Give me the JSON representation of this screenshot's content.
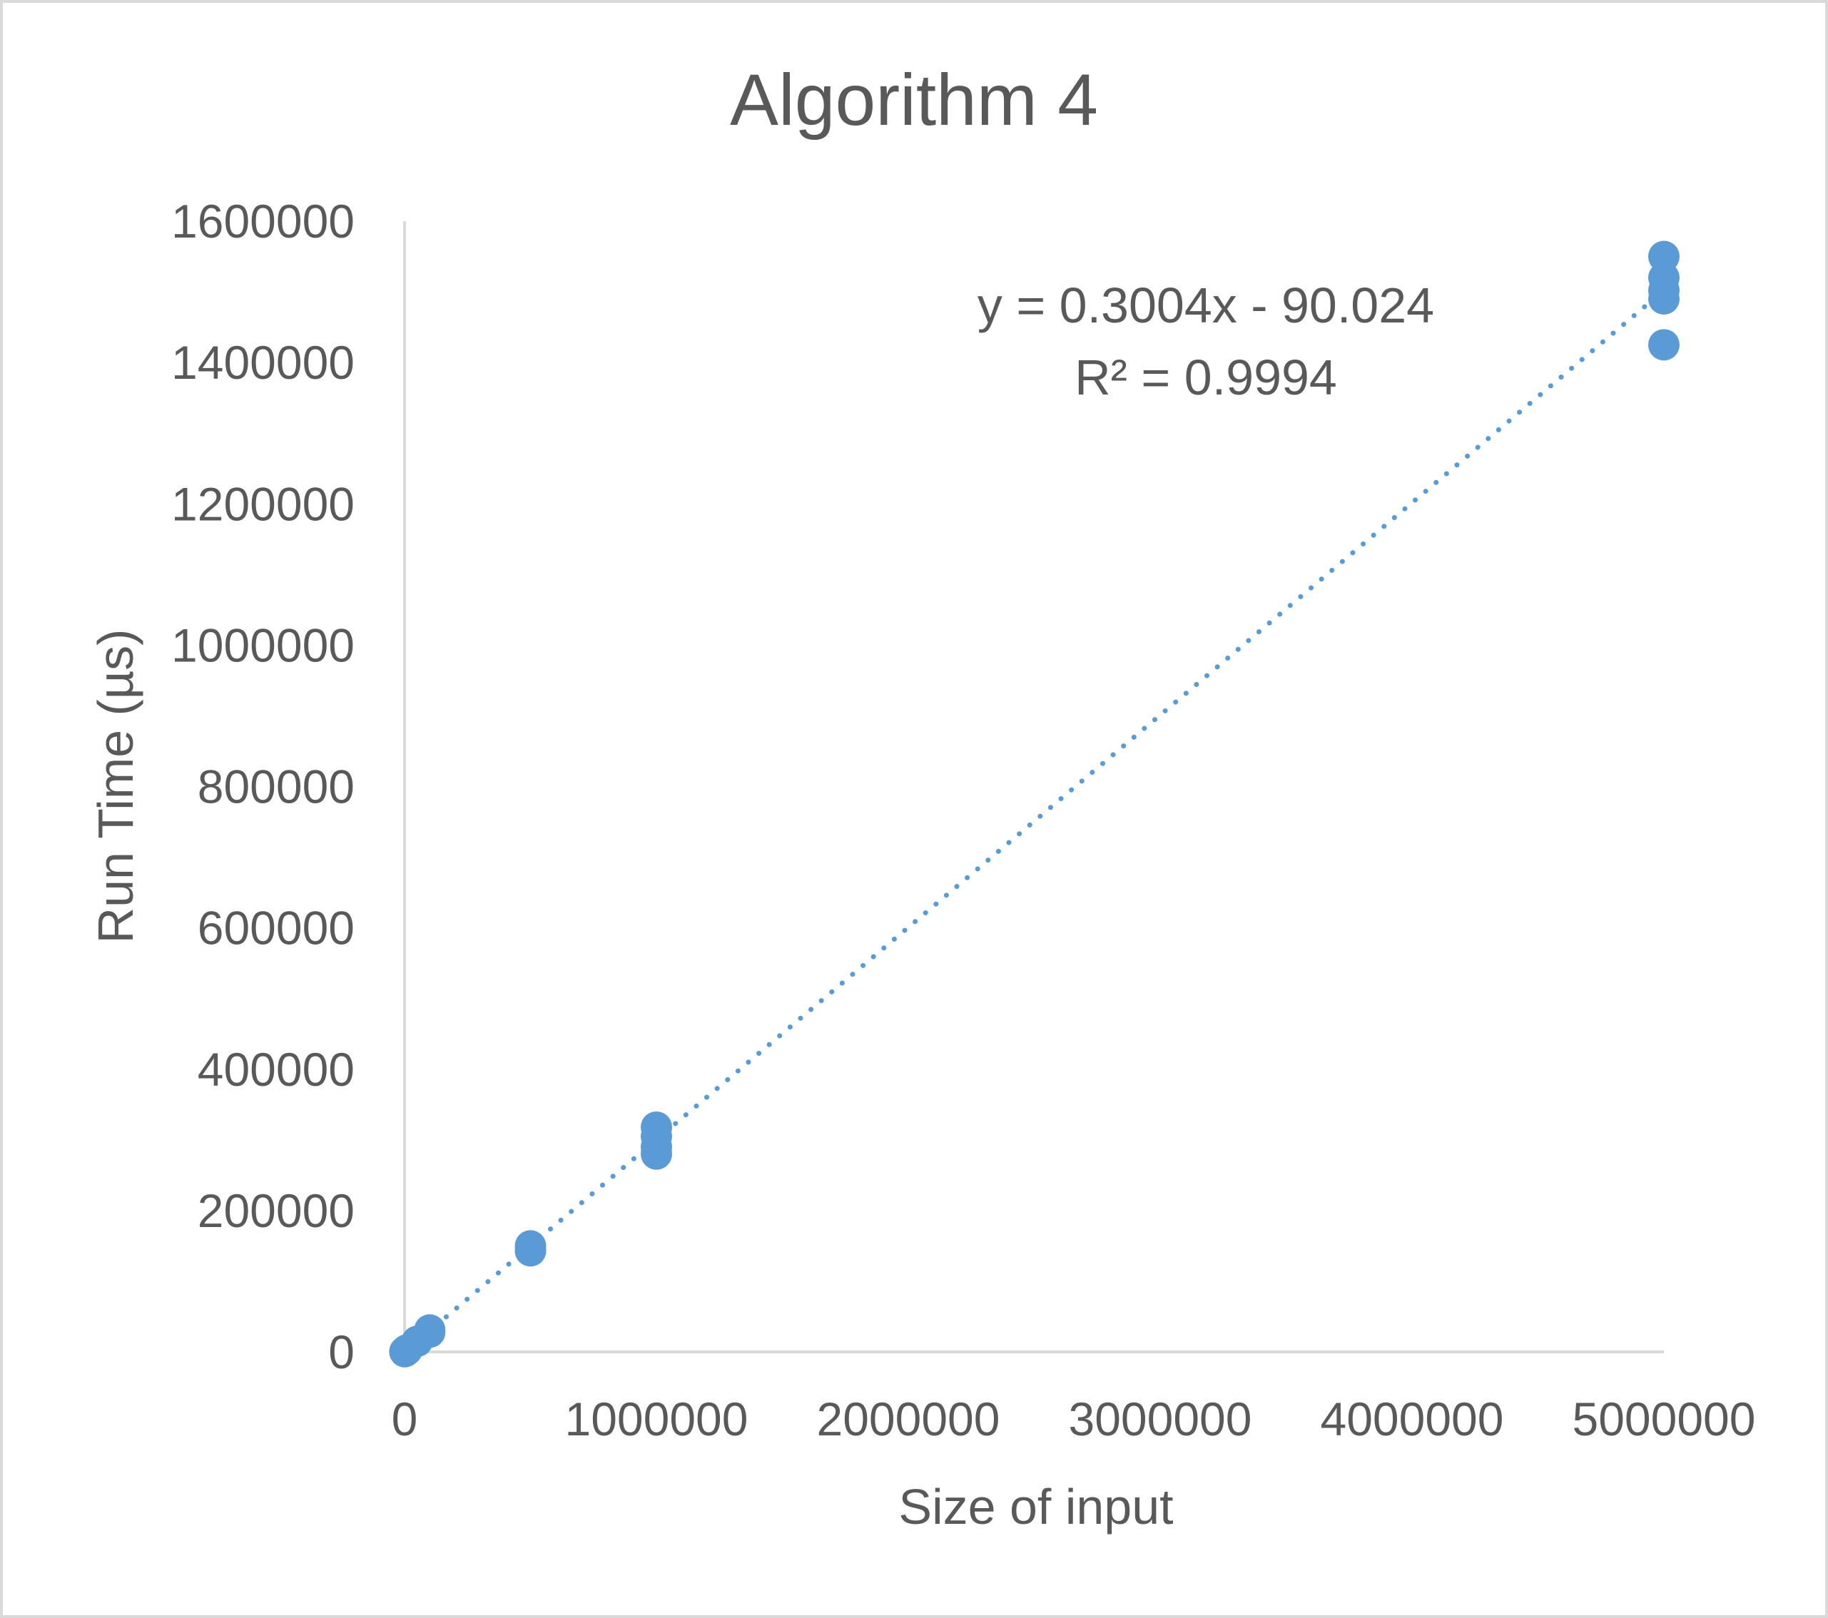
{
  "chart_data": {
    "type": "scatter",
    "title": "Algorithm 4",
    "xlabel": "Size of input",
    "ylabel": "Run Time (µs)",
    "xlim": [
      0,
      5000000
    ],
    "ylim": [
      0,
      1600000
    ],
    "x_ticks": [
      0,
      1000000,
      2000000,
      3000000,
      4000000,
      5000000
    ],
    "y_ticks": [
      0,
      200000,
      400000,
      600000,
      800000,
      1000000,
      1200000,
      1400000,
      1600000
    ],
    "x_tick_labels": [
      "0",
      "1000000",
      "2000000",
      "3000000",
      "4000000",
      "5000000"
    ],
    "y_tick_labels": [
      "0",
      "200000",
      "400000",
      "600000",
      "800000",
      "1000000",
      "1200000",
      "1400000",
      "1600000"
    ],
    "grid": false,
    "legend": "none",
    "color": "#5b9bd5",
    "series": [
      {
        "points": [
          {
            "x": 1000,
            "y": 300
          },
          {
            "x": 5000,
            "y": 1500
          },
          {
            "x": 10000,
            "y": 3000
          },
          {
            "x": 50000,
            "y": 15000
          },
          {
            "x": 100000,
            "y": 28000
          },
          {
            "x": 100000,
            "y": 31000
          },
          {
            "x": 500000,
            "y": 143000
          },
          {
            "x": 500000,
            "y": 150000
          },
          {
            "x": 1000000,
            "y": 280000
          },
          {
            "x": 1000000,
            "y": 290000
          },
          {
            "x": 1000000,
            "y": 305000
          },
          {
            "x": 1000000,
            "y": 318000
          },
          {
            "x": 5000000,
            "y": 1425000
          },
          {
            "x": 5000000,
            "y": 1490000
          },
          {
            "x": 5000000,
            "y": 1502000
          },
          {
            "x": 5000000,
            "y": 1520000
          },
          {
            "x": 5000000,
            "y": 1550000
          }
        ]
      }
    ],
    "trendline": {
      "type": "linear",
      "style": "dotted",
      "slope": 0.3004,
      "intercept": -90.024,
      "equation": "y = 0.3004x - 90.024",
      "r_squared": "R² = 0.9994"
    }
  }
}
